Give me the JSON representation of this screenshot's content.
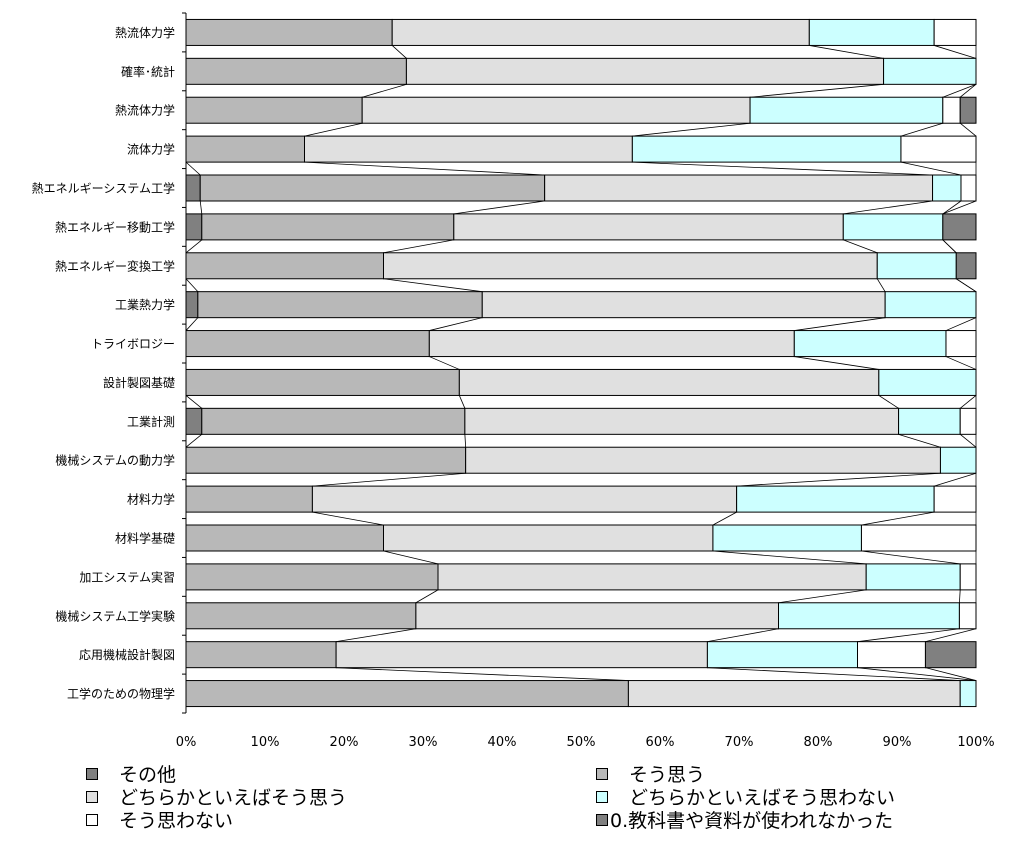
{
  "chart_data": {
    "type": "bar",
    "orientation": "horizontal",
    "stacked": "percent",
    "categories": [
      "熱流体力学",
      "確率･統計",
      "熱流体力学",
      "流体力学",
      "熱エネルギーシステム工学",
      "熱エネルギー移動工学",
      "熱エネルギー変換工学",
      "工業熱力学",
      "トライボロジー",
      "設計製図基礎",
      "工業計測",
      "機械システムの動力学",
      "材料力学",
      "材料学基礎",
      "加工システム実習",
      "機械システム工学実験",
      "応用機械設計製図",
      "工学のための物理学"
    ],
    "series": [
      {
        "name": "その他",
        "color": "#808080",
        "values": [
          0,
          0,
          0,
          0,
          1.8,
          2.0,
          0,
          1.5,
          0,
          0,
          2.0,
          0,
          0,
          0,
          0,
          0,
          0,
          0
        ]
      },
      {
        "name": "そう思う",
        "color": "#b8b8b8",
        "values": [
          26.1,
          27.9,
          22.3,
          15.0,
          43.6,
          31.9,
          25.0,
          36.0,
          30.8,
          34.6,
          33.3,
          35.4,
          16.0,
          25.0,
          31.9,
          29.1,
          19.0,
          56.0
        ]
      },
      {
        "name": "どちらかといえばそう思う",
        "color": "#e0e0e0",
        "values": [
          52.8,
          60.4,
          49.1,
          41.5,
          49.1,
          49.3,
          62.5,
          51.0,
          46.2,
          53.1,
          54.9,
          60.1,
          53.7,
          41.7,
          54.2,
          45.9,
          47.0,
          42.0
        ]
      },
      {
        "name": "どちらかといえばそう思わない",
        "color": "#ccffff",
        "values": [
          15.8,
          11.7,
          24.4,
          34.0,
          3.6,
          12.6,
          10.0,
          11.5,
          19.2,
          12.3,
          7.8,
          4.5,
          25.0,
          18.8,
          11.9,
          22.9,
          19.0,
          2.0
        ]
      },
      {
        "name": "そう思わない",
        "color": "#ffffff",
        "values": [
          5.3,
          0,
          2.2,
          9.5,
          1.9,
          0,
          0,
          0,
          3.8,
          0,
          2.0,
          0,
          5.3,
          14.5,
          2.0,
          2.1,
          8.6,
          0
        ]
      },
      {
        "name": "0.教科書や資料が使われなかった",
        "color": "#808080",
        "values": [
          0,
          0,
          2.0,
          0,
          0,
          4.2,
          2.5,
          0,
          0,
          0,
          0,
          0,
          0,
          0,
          0,
          0,
          6.4,
          0
        ]
      }
    ],
    "xlim": [
      0,
      100
    ],
    "xticks": [
      "0%",
      "10%",
      "20%",
      "30%",
      "40%",
      "50%",
      "60%",
      "70%",
      "80%",
      "90%",
      "100%"
    ],
    "series_lines": true,
    "legend": "bottom"
  }
}
